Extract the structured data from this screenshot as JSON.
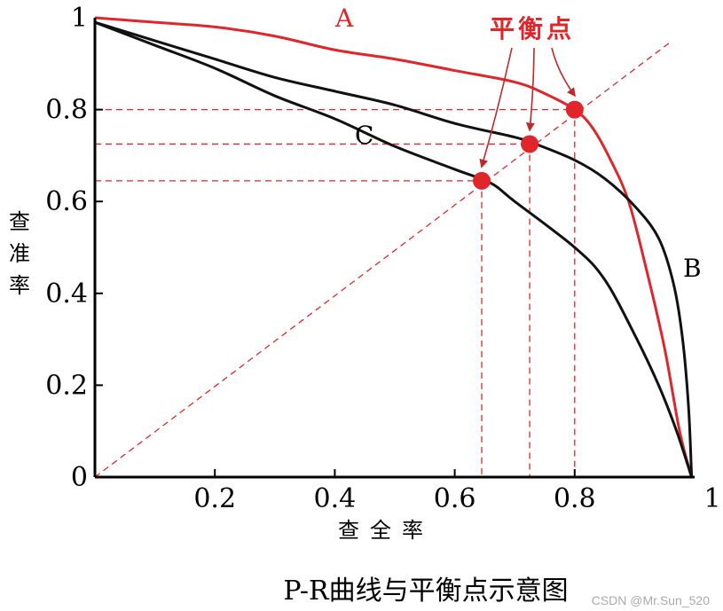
{
  "chart_data": {
    "type": "line",
    "caption": "P-R曲线与平衡点示意图",
    "xlabel": "查全率",
    "ylabel": "查准率",
    "xlim": [
      0,
      1
    ],
    "ylim": [
      0,
      1
    ],
    "x_ticks": [
      "0.2",
      "0.4",
      "0.6",
      "0.8",
      "1"
    ],
    "y_ticks": [
      "0",
      "0.2",
      "0.4",
      "0.6",
      "0.8",
      "1"
    ],
    "grid": false,
    "series": [
      {
        "name": "A",
        "color": "#e0262a",
        "points": [
          [
            0,
            1
          ],
          [
            0.1,
            0.99
          ],
          [
            0.2,
            0.98
          ],
          [
            0.3,
            0.96
          ],
          [
            0.4,
            0.93
          ],
          [
            0.5,
            0.91
          ],
          [
            0.6,
            0.885
          ],
          [
            0.7,
            0.86
          ],
          [
            0.75,
            0.835
          ],
          [
            0.8,
            0.8
          ],
          [
            0.83,
            0.76
          ],
          [
            0.86,
            0.69
          ],
          [
            0.89,
            0.6
          ],
          [
            0.92,
            0.45
          ],
          [
            0.95,
            0.28
          ],
          [
            0.975,
            0.1
          ],
          [
            0.995,
            0
          ]
        ]
      },
      {
        "name": "B",
        "color": "#111111",
        "points": [
          [
            0,
            0.99
          ],
          [
            0.1,
            0.95
          ],
          [
            0.2,
            0.91
          ],
          [
            0.3,
            0.87
          ],
          [
            0.4,
            0.84
          ],
          [
            0.5,
            0.81
          ],
          [
            0.6,
            0.77
          ],
          [
            0.7,
            0.74
          ],
          [
            0.735,
            0.725
          ],
          [
            0.8,
            0.69
          ],
          [
            0.85,
            0.65
          ],
          [
            0.9,
            0.59
          ],
          [
            0.94,
            0.52
          ],
          [
            0.965,
            0.42
          ],
          [
            0.98,
            0.3
          ],
          [
            0.99,
            0.15
          ],
          [
            0.995,
            0
          ]
        ]
      },
      {
        "name": "C",
        "color": "#111111",
        "points": [
          [
            0,
            0.99
          ],
          [
            0.1,
            0.94
          ],
          [
            0.2,
            0.89
          ],
          [
            0.3,
            0.83
          ],
          [
            0.4,
            0.78
          ],
          [
            0.5,
            0.72
          ],
          [
            0.6,
            0.67
          ],
          [
            0.66,
            0.64
          ],
          [
            0.7,
            0.6
          ],
          [
            0.8,
            0.5
          ],
          [
            0.85,
            0.43
          ],
          [
            0.9,
            0.31
          ],
          [
            0.94,
            0.2
          ],
          [
            0.97,
            0.1
          ],
          [
            0.995,
            0
          ]
        ]
      }
    ],
    "reference_line": {
      "type": "diagonal",
      "from": [
        0,
        0
      ],
      "to": [
        1,
        1
      ],
      "style": "dashed",
      "color": "#e0262a"
    },
    "break_even_points": [
      {
        "value": 0.645,
        "color": "#e0262a"
      },
      {
        "value": 0.725,
        "color": "#e0262a"
      },
      {
        "value": 0.8,
        "color": "#e0262a"
      }
    ],
    "annotation": {
      "label": "平衡点",
      "color": "#e0262a"
    },
    "curve_labels": [
      "A",
      "B",
      "C"
    ]
  },
  "watermark": "CSDN @Mr.Sun_520"
}
